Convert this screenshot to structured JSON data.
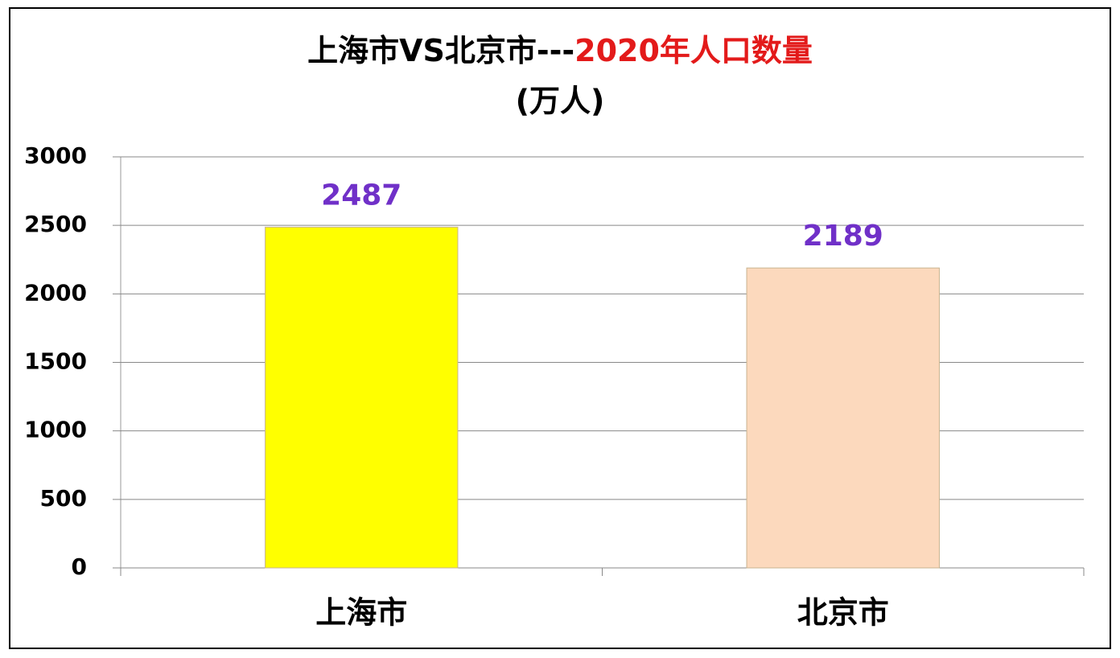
{
  "chart_data": {
    "type": "bar",
    "title": [
      "上海市VS北京市---",
      "2020年人口数量"
    ],
    "subtitle": "(万人)",
    "categories": [
      "上海市",
      "北京市"
    ],
    "values": [
      2487,
      2189
    ],
    "colors": [
      "#ffff00",
      "#fcd9bd"
    ],
    "ylim": [
      0,
      3000
    ],
    "yticks": [
      0,
      500,
      1000,
      1500,
      2000,
      2500,
      3000
    ],
    "grid": true
  }
}
